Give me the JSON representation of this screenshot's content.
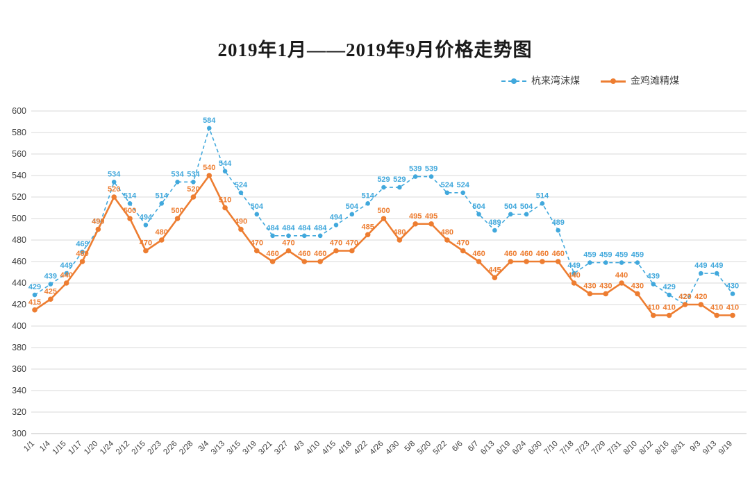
{
  "title": "2019年1月——2019年9月价格走势图",
  "legend": {
    "items": [
      {
        "label": "杭来湾沫煤"
      },
      {
        "label": "金鸡滩精煤"
      }
    ]
  },
  "colors": {
    "series_blue": "#41A8DC",
    "series_orange": "#ED7D31",
    "gridline": "#D9D9D9",
    "axis_text": "#404040"
  },
  "chart_data": {
    "type": "line",
    "title": "2019年1月——2019年9月价格走势图",
    "categories": [
      "1/1",
      "1/4",
      "1/15",
      "1/17",
      "1/20",
      "1/24",
      "2/12",
      "2/15",
      "2/23",
      "2/26",
      "2/28",
      "3/4",
      "3/13",
      "3/15",
      "3/19",
      "3/21",
      "3/27",
      "4/3",
      "4/10",
      "4/15",
      "4/18",
      "4/22",
      "4/26",
      "4/30",
      "5/8",
      "5/20",
      "5/22",
      "6/6",
      "6/7",
      "6/13",
      "6/19",
      "6/24",
      "6/30",
      "7/10",
      "7/18",
      "7/23",
      "7/29",
      "7/31",
      "8/10",
      "8/12",
      "8/16",
      "8/31",
      "9/3",
      "9/13",
      "9/19"
    ],
    "series": [
      {
        "name": "杭来湾沫煤",
        "color": "#41A8DC",
        "line_style": "dashed",
        "values": [
          429,
          439,
          449,
          469,
          490,
          534,
          514,
          494,
          514,
          534,
          534,
          584,
          544,
          524,
          504,
          484,
          484,
          484,
          484,
          494,
          504,
          514,
          529,
          529,
          539,
          539,
          524,
          524,
          504,
          489,
          504,
          504,
          514,
          489,
          449,
          459,
          459,
          459,
          459,
          439,
          429,
          420,
          449,
          449,
          430
        ]
      },
      {
        "name": "金鸡滩精煤",
        "color": "#ED7D31",
        "line_style": "solid",
        "values": [
          415,
          425,
          440,
          460,
          490,
          520,
          500,
          470,
          480,
          500,
          520,
          540,
          510,
          490,
          470,
          460,
          470,
          460,
          460,
          470,
          470,
          485,
          500,
          480,
          495,
          495,
          480,
          470,
          460,
          445,
          460,
          460,
          460,
          460,
          440,
          430,
          430,
          440,
          430,
          410,
          410,
          420,
          420,
          410,
          410
        ]
      }
    ],
    "ylim": [
      300,
      600
    ],
    "ytick_step": 20,
    "grid": true,
    "legend_position": "top-right",
    "data_labels": true,
    "xlabel": "",
    "ylabel": ""
  }
}
